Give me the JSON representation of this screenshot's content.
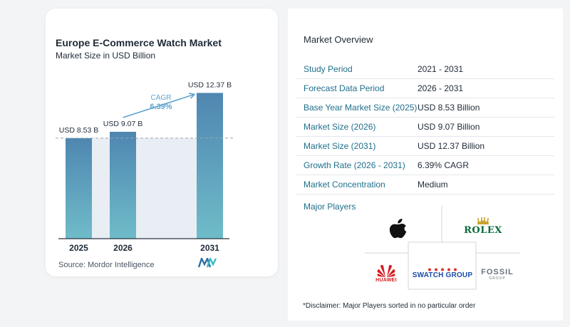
{
  "chart_data": {
    "type": "bar",
    "title": "Europe E-Commerce Watch Market",
    "subtitle": "Market Size in USD Billion",
    "categories": [
      "2025",
      "2026",
      "2031"
    ],
    "values": [
      8.53,
      9.07,
      12.37
    ],
    "value_labels": [
      "USD 8.53 B",
      "USD 9.07 B",
      "USD 12.37 B"
    ],
    "ylim": [
      0,
      13
    ],
    "cagr_label": "CAGR",
    "cagr_value": "6.39%",
    "bar_colors": [
      "#5b93b8",
      "#5b93b8",
      "#5b93b8"
    ],
    "accent_color": "#5fa3cf"
  },
  "source": "Source:  Mordor Intelligence",
  "overview": {
    "title": "Market Overview",
    "rows": [
      {
        "key": "Study Period",
        "value": "2021 - 2031"
      },
      {
        "key": "Forecast Data Period",
        "value": "2026 - 2031"
      },
      {
        "key": "Base Year Market Size (2025)",
        "value": "USD 8.53 Billion"
      },
      {
        "key": "Market Size (2026)",
        "value": "USD 9.07 Billion"
      },
      {
        "key": "Market Size (2031)",
        "value": "USD 12.37 Billion"
      },
      {
        "key": "Growth Rate (2026 - 2031)",
        "value": "6.39% CAGR"
      },
      {
        "key": "Market Concentration",
        "value": "Medium"
      }
    ],
    "major_players_label": "Major Players",
    "players": {
      "apple": "apple-logo-icon",
      "rolex": "ROLEX",
      "huawei": "HUAWEI",
      "swatch": "SWATCH GROUP",
      "fossil": "FOSSIL",
      "fossil_sub": "GROUP"
    }
  },
  "disclaimer": "*Disclaimer: Major Players sorted in no particular order"
}
